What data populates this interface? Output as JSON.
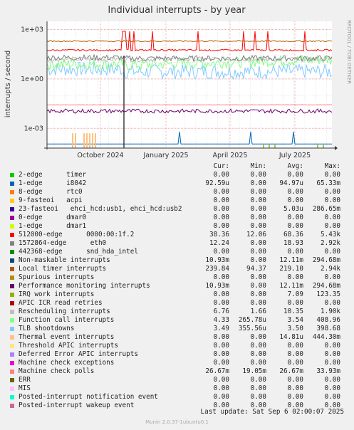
{
  "chart_data": {
    "type": "line",
    "title": "Individual interrupts - by year",
    "ylabel": "interrupts / second",
    "y_scale": "log",
    "yticks": [
      "1e+03",
      "1e+00",
      "1e-03"
    ],
    "xticks": [
      "October 2024",
      "January 2025",
      "April 2025",
      "July 2025"
    ],
    "grid": true,
    "side_text": "RRDTOOL / TOBI OETIKER",
    "columns": [
      "Cur:",
      "Min:",
      "Avg:",
      "Max:"
    ],
    "series": [
      {
        "name": "2-edge      timer",
        "color": "#00cc00",
        "cur": "0.00",
        "min": "0.00",
        "avg": "0.00",
        "max": "0.00"
      },
      {
        "name": "1-edge      i8042",
        "color": "#0066b3",
        "cur": "92.59u",
        "min": "0.00",
        "avg": "94.97u",
        "max": "65.33m"
      },
      {
        "name": "8-edge      rtc0",
        "color": "#ff8000",
        "cur": "0.00",
        "min": "0.00",
        "avg": "0.00",
        "max": "0.00"
      },
      {
        "name": "9-fasteoi   acpi",
        "color": "#ffcc00",
        "cur": "0.00",
        "min": "0.00",
        "avg": "0.00",
        "max": "0.00"
      },
      {
        "name": "23-fasteoi   ehci_hcd:usb1, ehci_hcd:usb2",
        "color": "#330099",
        "cur": "0.00",
        "min": "0.00",
        "avg": "5.03u",
        "max": "286.65m"
      },
      {
        "name": "0-edge      dmar0",
        "color": "#990099",
        "cur": "0.00",
        "min": "0.00",
        "avg": "0.00",
        "max": "0.00"
      },
      {
        "name": "1-edge      dmar1",
        "color": "#ccff00",
        "cur": "0.00",
        "min": "0.00",
        "avg": "0.00",
        "max": "0.00"
      },
      {
        "name": "512000-edge      0000:00:1f.2",
        "color": "#ff0000",
        "cur": "38.36",
        "min": "12.06",
        "avg": "68.36",
        "max": "5.43k"
      },
      {
        "name": "1572864-edge      eth0",
        "color": "#808080",
        "cur": "12.24",
        "min": "0.00",
        "avg": "18.93",
        "max": "2.92k"
      },
      {
        "name": "442368-edge      snd_hda_intel",
        "color": "#008f00",
        "cur": "0.00",
        "min": "0.00",
        "avg": "0.00",
        "max": "0.00"
      },
      {
        "name": "Non-maskable interrupts",
        "color": "#00487d",
        "cur": "10.93m",
        "min": "0.00",
        "avg": "12.11m",
        "max": "294.68m"
      },
      {
        "name": "Local timer interrupts",
        "color": "#b35a00",
        "cur": "239.84",
        "min": "94.37",
        "avg": "219.10",
        "max": "2.94k"
      },
      {
        "name": "Spurious interrupts",
        "color": "#b38f00",
        "cur": "0.00",
        "min": "0.00",
        "avg": "0.00",
        "max": "0.00"
      },
      {
        "name": "Performance monitoring interrupts",
        "color": "#6b006b",
        "cur": "10.93m",
        "min": "0.00",
        "avg": "12.11m",
        "max": "294.68m"
      },
      {
        "name": "IRQ work interrupts",
        "color": "#8fb300",
        "cur": "0.00",
        "min": "0.00",
        "avg": "7.09",
        "max": "123.35"
      },
      {
        "name": "APIC ICR read retries",
        "color": "#b30000",
        "cur": "0.00",
        "min": "0.00",
        "avg": "0.00",
        "max": "0.00"
      },
      {
        "name": "Rescheduling interrupts",
        "color": "#bebebe",
        "cur": "6.76",
        "min": "1.66",
        "avg": "10.35",
        "max": "1.90k"
      },
      {
        "name": "Function call interrupts",
        "color": "#80ff80",
        "cur": "4.33",
        "min": "265.78u",
        "avg": "3.54",
        "max": "408.96"
      },
      {
        "name": "TLB shootdowns",
        "color": "#80c9ff",
        "cur": "3.49",
        "min": "355.56u",
        "avg": "3.50",
        "max": "398.68"
      },
      {
        "name": "Thermal event interrupts",
        "color": "#ffc080",
        "cur": "0.00",
        "min": "0.00",
        "avg": "14.81u",
        "max": "444.30m"
      },
      {
        "name": "Threshold APIC interrupts",
        "color": "#ffe680",
        "cur": "0.00",
        "min": "0.00",
        "avg": "0.00",
        "max": "0.00"
      },
      {
        "name": "Deferred Error APIC interrupts",
        "color": "#aa80ff",
        "cur": "0.00",
        "min": "0.00",
        "avg": "0.00",
        "max": "0.00"
      },
      {
        "name": "Machine check exceptions",
        "color": "#ee00cc",
        "cur": "0.00",
        "min": "0.00",
        "avg": "0.00",
        "max": "0.00"
      },
      {
        "name": "Machine check polls",
        "color": "#ff8080",
        "cur": "26.67m",
        "min": "19.05m",
        "avg": "26.67m",
        "max": "33.93m"
      },
      {
        "name": "ERR",
        "color": "#666600",
        "cur": "0.00",
        "min": "0.00",
        "avg": "0.00",
        "max": "0.00"
      },
      {
        "name": "MIS",
        "color": "#ffbfff",
        "cur": "0.00",
        "min": "0.00",
        "avg": "0.00",
        "max": "0.00"
      },
      {
        "name": "Posted-interrupt notification event",
        "color": "#00ffcc",
        "cur": "0.00",
        "min": "0.00",
        "avg": "0.00",
        "max": "0.00"
      },
      {
        "name": "Posted-interrupt wakeup event",
        "color": "#cc6699",
        "cur": "0.00",
        "min": "0.00",
        "avg": "0.00",
        "max": "0.00"
      }
    ],
    "last_update": "Last update:  Sat Sep  6 02:00:07 2025",
    "version": "Munin 2.0.37-1ubuntu0.1"
  }
}
